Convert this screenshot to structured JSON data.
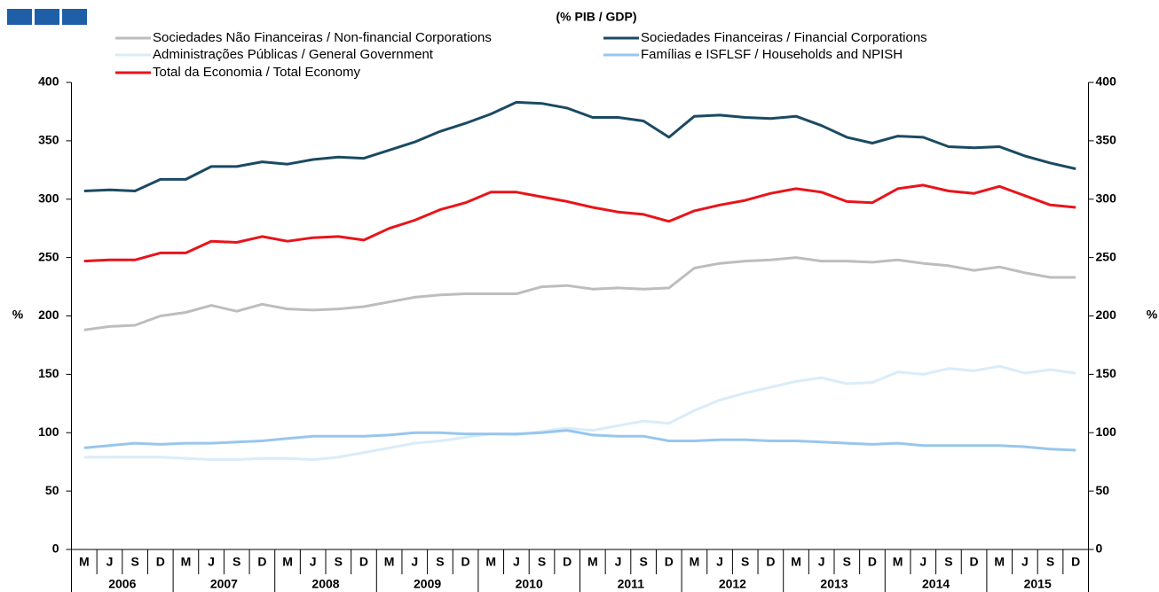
{
  "chart_data": {
    "type": "line",
    "title": "(% PIB / GDP)",
    "ylabel": "%",
    "y2label": "%",
    "categories": [
      "M",
      "J",
      "S",
      "D",
      "M",
      "J",
      "S",
      "D",
      "M",
      "J",
      "S",
      "D",
      "M",
      "J",
      "S",
      "D",
      "M",
      "J",
      "S",
      "D",
      "M",
      "J",
      "S",
      "D",
      "M",
      "J",
      "S",
      "D",
      "M",
      "J",
      "S",
      "D",
      "M",
      "J",
      "S",
      "D",
      "M",
      "J",
      "S",
      "D"
    ],
    "years": [
      "2006",
      "2007",
      "2008",
      "2009",
      "2010",
      "2011",
      "2012",
      "2013",
      "2014",
      "2015"
    ],
    "ylim": [
      0,
      400
    ],
    "yticks": [
      0,
      50,
      100,
      150,
      200,
      250,
      300,
      350,
      400
    ],
    "y2lim": [
      0,
      400
    ],
    "y2ticks": [
      0,
      50,
      100,
      150,
      200,
      250,
      300,
      350,
      400
    ],
    "series": [
      {
        "name": "Sociedades Não Financeiras / Non-financial Corporations",
        "color": "#bdbdbd",
        "values": [
          188,
          191,
          192,
          200,
          203,
          209,
          204,
          210,
          206,
          205,
          206,
          208,
          212,
          216,
          218,
          219,
          219,
          219,
          225,
          226,
          223,
          224,
          223,
          224,
          241,
          245,
          247,
          248,
          250,
          247,
          247,
          246,
          248,
          245,
          243,
          239,
          242,
          237,
          233,
          233
        ]
      },
      {
        "name": "Sociedades Financeiras / Financial Corporations",
        "color": "#1b4a63",
        "values": [
          307,
          308,
          307,
          317,
          317,
          328,
          328,
          332,
          330,
          334,
          336,
          335,
          342,
          349,
          358,
          365,
          373,
          383,
          382,
          378,
          370,
          370,
          367,
          353,
          371,
          372,
          370,
          369,
          371,
          363,
          353,
          348,
          354,
          353,
          345,
          344,
          345,
          337,
          331,
          326
        ]
      },
      {
        "name": "Administrações Públicas / General Government",
        "color": "#d9ecf9",
        "values": [
          79,
          79,
          79,
          79,
          78,
          77,
          77,
          78,
          78,
          77,
          79,
          83,
          87,
          91,
          93,
          96,
          99,
          98,
          101,
          104,
          102,
          106,
          110,
          108,
          119,
          128,
          134,
          139,
          144,
          147,
          142,
          143,
          152,
          150,
          155,
          153,
          157,
          151,
          154,
          151
        ]
      },
      {
        "name": "Famílias e ISFLSF / Households and NPISH",
        "color": "#98c6ee",
        "values": [
          87,
          89,
          91,
          90,
          91,
          91,
          92,
          93,
          95,
          97,
          97,
          97,
          98,
          100,
          100,
          99,
          99,
          99,
          100,
          102,
          98,
          97,
          97,
          93,
          93,
          94,
          94,
          93,
          93,
          92,
          91,
          90,
          91,
          89,
          89,
          89,
          89,
          88,
          86,
          85
        ]
      },
      {
        "name": "Total da Economia / Total Economy",
        "color": "#e8141a",
        "values": [
          247,
          248,
          248,
          254,
          254,
          264,
          263,
          268,
          264,
          267,
          268,
          265,
          275,
          282,
          291,
          297,
          306,
          306,
          302,
          298,
          293,
          289,
          287,
          281,
          290,
          295,
          299,
          305,
          309,
          306,
          298,
          297,
          309,
          312,
          307,
          305,
          311,
          303,
          295,
          293
        ]
      }
    ]
  }
}
